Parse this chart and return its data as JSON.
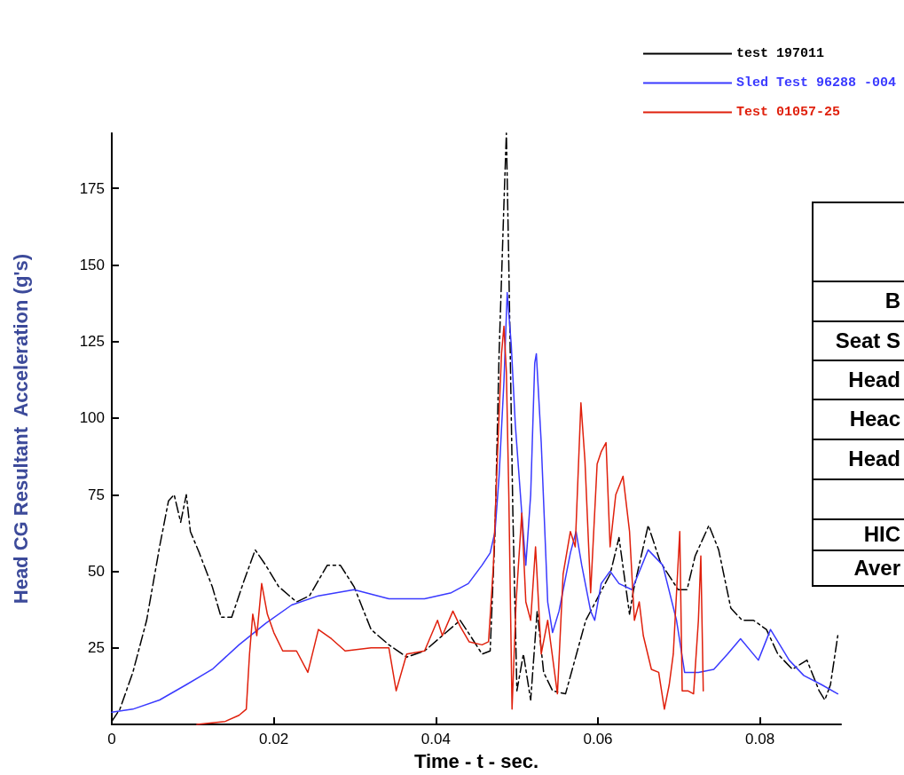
{
  "chart_data": {
    "type": "line",
    "xlabel": "Time - t - sec.",
    "ylabel": "Head CG Resultant  Acceleration (g's)",
    "xlim": [
      0,
      0.09
    ],
    "ylim": [
      0,
      193
    ],
    "xticks": [
      0,
      0.02,
      0.04,
      0.06,
      0.08
    ],
    "yticks": [
      25,
      50,
      75,
      100,
      125,
      150,
      175
    ],
    "grid": false,
    "legend": "top right",
    "marker": "none",
    "series": [
      {
        "name": "test 197011",
        "color": "#000000",
        "line_style": "dashed",
        "x": [
          0,
          0.001,
          0.0026,
          0.0043,
          0.0059,
          0.007,
          0.0077,
          0.0085,
          0.0092,
          0.0097,
          0.0108,
          0.0124,
          0.0135,
          0.0148,
          0.0162,
          0.0177,
          0.019,
          0.0206,
          0.0228,
          0.0244,
          0.0266,
          0.0282,
          0.0299,
          0.032,
          0.0342,
          0.0364,
          0.0386,
          0.0408,
          0.043,
          0.044,
          0.0457,
          0.0467,
          0.0473,
          0.0478,
          0.0484,
          0.0487,
          0.049,
          0.0495,
          0.05,
          0.0508,
          0.0517,
          0.0525,
          0.0533,
          0.0544,
          0.056,
          0.0585,
          0.0615,
          0.0626,
          0.0639,
          0.0644,
          0.0662,
          0.0677,
          0.0699,
          0.071,
          0.072,
          0.0737,
          0.0749,
          0.0764,
          0.0778,
          0.0792,
          0.0808,
          0.0822,
          0.084,
          0.0858,
          0.0873,
          0.088,
          0.0887,
          0.0896
        ],
        "values": [
          1,
          5,
          17,
          34,
          58,
          73,
          75,
          66,
          75,
          63,
          56,
          45,
          35,
          35,
          46,
          57,
          52,
          45,
          40,
          42,
          52,
          52,
          45,
          31,
          26,
          22,
          24,
          29,
          34,
          30,
          23,
          24,
          63,
          121,
          170,
          193,
          150,
          69,
          11,
          23,
          8,
          37,
          17,
          11,
          10,
          34,
          49,
          61,
          36,
          44,
          65,
          53,
          44,
          44,
          55,
          65,
          57,
          38,
          34,
          34,
          31,
          23,
          18,
          21,
          11,
          8,
          13,
          29
        ]
      },
      {
        "name": "Sled Test 96288 -004",
        "color": "#3a3aff",
        "line_style": "solid",
        "x": [
          0,
          0.0026,
          0.0059,
          0.0092,
          0.0124,
          0.0157,
          0.019,
          0.0222,
          0.0255,
          0.0299,
          0.0342,
          0.0386,
          0.0419,
          0.044,
          0.0457,
          0.0467,
          0.0473,
          0.0478,
          0.0484,
          0.0488,
          0.0493,
          0.0498,
          0.0506,
          0.0511,
          0.0517,
          0.0522,
          0.0524,
          0.053,
          0.0538,
          0.0544,
          0.0552,
          0.0566,
          0.0573,
          0.058,
          0.0591,
          0.0596,
          0.0604,
          0.0615,
          0.0626,
          0.0642,
          0.0662,
          0.068,
          0.0697,
          0.0707,
          0.0724,
          0.0743,
          0.076,
          0.0776,
          0.0798,
          0.0813,
          0.0836,
          0.0854,
          0.0876,
          0.0896
        ],
        "values": [
          4,
          5,
          8,
          13,
          18,
          26,
          33,
          39,
          42,
          44,
          41,
          41,
          43,
          46,
          52,
          56,
          63,
          81,
          112,
          141,
          124,
          98,
          69,
          52,
          75,
          118,
          121,
          92,
          40,
          30,
          37,
          56,
          63,
          52,
          37,
          34,
          46,
          50,
          46,
          44,
          57,
          52,
          34,
          17,
          17,
          18,
          23,
          28,
          21,
          31,
          21,
          16,
          13,
          10
        ]
      },
      {
        "name": "Test 01057-25",
        "color": "#e0200c",
        "line_style": "solid",
        "x": [
          0.0105,
          0.014,
          0.0157,
          0.0166,
          0.017,
          0.0174,
          0.0179,
          0.0185,
          0.0192,
          0.02,
          0.0211,
          0.0228,
          0.0242,
          0.0255,
          0.0271,
          0.0288,
          0.032,
          0.0342,
          0.0351,
          0.0364,
          0.0386,
          0.0402,
          0.0408,
          0.0421,
          0.043,
          0.0441,
          0.0457,
          0.0465,
          0.0471,
          0.0475,
          0.0481,
          0.0484,
          0.0487,
          0.049,
          0.0494,
          0.0499,
          0.0506,
          0.0511,
          0.0517,
          0.0523,
          0.053,
          0.0538,
          0.055,
          0.0557,
          0.0566,
          0.0572,
          0.0579,
          0.0584,
          0.0591,
          0.0599,
          0.0604,
          0.061,
          0.0615,
          0.0622,
          0.0631,
          0.0639,
          0.0645,
          0.0651,
          0.0656,
          0.0666,
          0.0675,
          0.0682,
          0.0688,
          0.0693,
          0.0701,
          0.0704,
          0.0711,
          0.0718,
          0.0724,
          0.0727,
          0.073
        ],
        "values": [
          0,
          1,
          3,
          5,
          23,
          36,
          29,
          46,
          36,
          30,
          24,
          24,
          17,
          31,
          28,
          24,
          25,
          25,
          11,
          23,
          24,
          34,
          29,
          37,
          32,
          27,
          26,
          27,
          52,
          81,
          121,
          130,
          115,
          75,
          5,
          40,
          69,
          40,
          34,
          58,
          23,
          34,
          10,
          49,
          63,
          58,
          105,
          86,
          43,
          85,
          89,
          92,
          58,
          75,
          81,
          63,
          34,
          40,
          29,
          18,
          17,
          5,
          13,
          23,
          63,
          11,
          11,
          10,
          34,
          55,
          11
        ]
      }
    ],
    "annotations": [
      "B",
      "Seat S",
      "Head",
      "Heac",
      "Head",
      "HIC",
      "Aver"
    ]
  }
}
